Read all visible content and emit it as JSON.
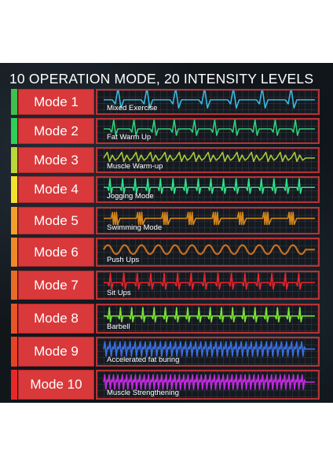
{
  "header": {
    "title": "10 OPERATION MODE, 20 INTENSITY LEVELS"
  },
  "modes": [
    {
      "label": "Mode 1",
      "description": "Mixed Exercise",
      "bar_color": "#3fbf4f",
      "wave_color": "#38b9e0"
    },
    {
      "label": "Mode 2",
      "description": "Fat Warm Up",
      "bar_color": "#2fcf5a",
      "wave_color": "#2fcf7a"
    },
    {
      "label": "Mode 3",
      "description": "Muscle Warm-up",
      "bar_color": "#b8d838",
      "wave_color": "#a8c83a"
    },
    {
      "label": "Mode 4",
      "description": "Jogging Mode",
      "bar_color": "#f2e12e",
      "wave_color": "#2fe38a"
    },
    {
      "label": "Mode 5",
      "description": "Swimming Mode",
      "bar_color": "#f0a12a",
      "wave_color": "#d4861c"
    },
    {
      "label": "Mode 6",
      "description": "Push Ups",
      "bar_color": "#ee8a26",
      "wave_color": "#c9701e"
    },
    {
      "label": "Mode 7",
      "description": "Sit Ups",
      "bar_color": "#e86b26",
      "wave_color": "#e8232d"
    },
    {
      "label": "Mode 8",
      "description": "Barbell",
      "bar_color": "#e65626",
      "wave_color": "#7be236"
    },
    {
      "label": "Mode 9",
      "description": "Accelerated fat buring",
      "bar_color": "#e54326",
      "wave_color": "#3a6fe0"
    },
    {
      "label": "Mode 10",
      "description": "Muscle Strengthening",
      "bar_color": "#e62828",
      "wave_color": "#c12ae0"
    }
  ]
}
